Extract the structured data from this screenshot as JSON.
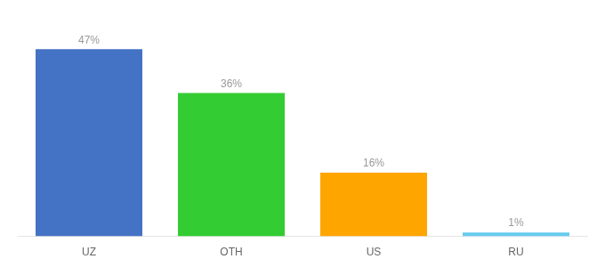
{
  "chart_data": {
    "type": "bar",
    "categories": [
      "UZ",
      "OTH",
      "US",
      "RU"
    ],
    "values": [
      47,
      36,
      16,
      1
    ],
    "value_labels": [
      "47%",
      "36%",
      "16%",
      "1%"
    ],
    "colors": [
      "#4472C4",
      "#33CC33",
      "#FFA500",
      "#66CCEE"
    ],
    "ylim": [
      0,
      54
    ],
    "data_labels": true,
    "tick_labels": "x",
    "grid": false
  }
}
